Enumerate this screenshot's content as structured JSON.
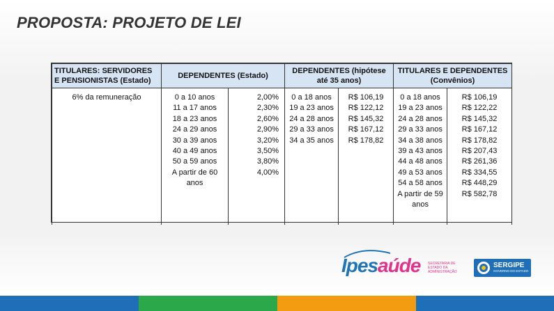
{
  "title": "PROPOSTA: PROJETO DE LEI",
  "table": {
    "headers": [
      "TITULARES: SERVIDORES E PENSIONISTAS (Estado)",
      "DEPENDENTES (Estado)",
      "DEPENDENTES (hipótese até 35 anos)",
      "TITULARES E DEPENDENTES (Convênios)"
    ],
    "titulares": "6% da remuneração",
    "dependentes_estado": {
      "faixas": [
        "0 a 10 anos",
        "11 a 17 anos",
        "18 a 23 anos",
        "24 a 29 anos",
        "30 a 39 anos",
        "40 a 49 anos",
        "50 a 59 anos",
        "A partir de 60 anos"
      ],
      "percentuais": [
        "2,00%",
        "2,30%",
        "2,60%",
        "2,90%",
        "3,20%",
        "3,50%",
        "3,80%",
        "4,00%"
      ]
    },
    "dependentes_35": {
      "faixas": [
        "0 a 18 anos",
        "19 a 23 anos",
        "24 a 28 anos",
        "29 a 33 anos",
        "34 a 35 anos"
      ],
      "valores": [
        "R$ 106,19",
        "R$ 122,12",
        "R$ 145,32",
        "R$ 167,12",
        "R$ 178,82"
      ]
    },
    "convenios": {
      "faixas": [
        "0 a 18 anos",
        "19 a 23 anos",
        "24 a 28 anos",
        "29 a 33 anos",
        "34 a 38 anos",
        "39 a 43 anos",
        "44 a 48 anos",
        "49 a 53 anos",
        "54 a 58 anos",
        "A partir de 59 anos"
      ],
      "valores": [
        "R$ 106,19",
        "R$ 122,22",
        "R$ 145,32",
        "R$ 167,12",
        "R$ 178,82",
        "R$ 207,43",
        "R$ 261,36",
        "R$ 334,55",
        "R$ 448,29",
        "R$ 582,78"
      ]
    }
  },
  "footer": {
    "logo_ipes": "Ipes",
    "logo_saude": "aúde",
    "secretaria": "SECRETARIA DE ESTADO DA ADMINISTRAÇÃO",
    "sergipe": "SERGIPE",
    "sergipe_sub": "GOVERNO DO ESTADO"
  },
  "colors": {
    "header_bg": "#d6e4f4",
    "bar": [
      "#1e6fb8",
      "#2aa84a",
      "#f39c12",
      "#1e6fb8"
    ]
  }
}
